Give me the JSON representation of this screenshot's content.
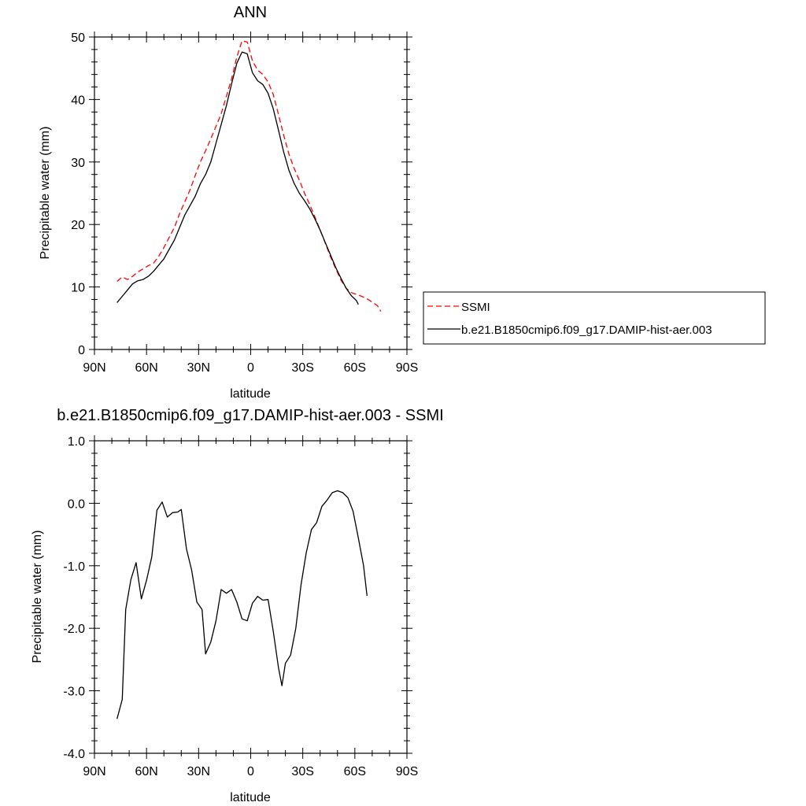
{
  "chart_data": [
    {
      "type": "line",
      "title": "ANN",
      "xlabel": "latitude",
      "ylabel": "Precipitable water (mm)",
      "xlim": [
        90,
        -90
      ],
      "ylim": [
        0,
        50
      ],
      "x_ticks": [
        {
          "value": 90,
          "label": "90N"
        },
        {
          "value": 60,
          "label": "60N"
        },
        {
          "value": 30,
          "label": "30N"
        },
        {
          "value": 0,
          "label": "0"
        },
        {
          "value": -30,
          "label": "30S"
        },
        {
          "value": -60,
          "label": "60S"
        },
        {
          "value": -90,
          "label": "90S"
        }
      ],
      "y_ticks": [
        {
          "value": 0,
          "label": "0"
        },
        {
          "value": 10,
          "label": "10"
        },
        {
          "value": 20,
          "label": "20"
        },
        {
          "value": 30,
          "label": "30"
        },
        {
          "value": 40,
          "label": "40"
        },
        {
          "value": 50,
          "label": "50"
        }
      ],
      "legend_position": "right",
      "series": [
        {
          "name": "SSMI",
          "color": "#ff0000",
          "dash": true,
          "points": [
            [
              77,
              10.9
            ],
            [
              74,
              11.6
            ],
            [
              71,
              11.2
            ],
            [
              68,
              11.7
            ],
            [
              65,
              12.4
            ],
            [
              62,
              12.9
            ],
            [
              59,
              13.4
            ],
            [
              56,
              13.8
            ],
            [
              53,
              14.9
            ],
            [
              50,
              16.3
            ],
            [
              47,
              17.9
            ],
            [
              44,
              19.5
            ],
            [
              41,
              21.7
            ],
            [
              38,
              23.6
            ],
            [
              35,
              25.5
            ],
            [
              32,
              27.8
            ],
            [
              29,
              30.0
            ],
            [
              26,
              31.8
            ],
            [
              23,
              33.7
            ],
            [
              20,
              35.7
            ],
            [
              17,
              37.7
            ],
            [
              14,
              40.5
            ],
            [
              11,
              43.3
            ],
            [
              8,
              46.8
            ],
            [
              5,
              49.4
            ],
            [
              2,
              49.2
            ],
            [
              -1,
              46.2
            ],
            [
              -4,
              44.7
            ],
            [
              -7,
              44.0
            ],
            [
              -10,
              42.8
            ],
            [
              -13,
              40.8
            ],
            [
              -16,
              37.6
            ],
            [
              -19,
              34.3
            ],
            [
              -22,
              31.3
            ],
            [
              -25,
              29.0
            ],
            [
              -28,
              27.1
            ],
            [
              -31,
              25.0
            ],
            [
              -34,
              23.2
            ],
            [
              -37,
              21.2
            ],
            [
              -40,
              19.1
            ],
            [
              -43,
              17.0
            ],
            [
              -46,
              14.8
            ],
            [
              -49,
              12.9
            ],
            [
              -52,
              11.1
            ],
            [
              -55,
              9.8
            ],
            [
              -58,
              9.1
            ],
            [
              -61,
              8.8
            ],
            [
              -64,
              8.5
            ],
            [
              -67,
              8.1
            ],
            [
              -70,
              7.6
            ],
            [
              -73,
              7.0
            ],
            [
              -75,
              6.1
            ]
          ]
        },
        {
          "name": "b.e21.B1850cmip6.f09_g17.DAMIP-hist-aer.003",
          "color": "#000000",
          "dash": false,
          "points": [
            [
              77,
              7.5
            ],
            [
              74,
              8.5
            ],
            [
              71,
              9.5
            ],
            [
              68,
              10.5
            ],
            [
              65,
              11.0
            ],
            [
              62,
              11.2
            ],
            [
              59,
              11.7
            ],
            [
              56,
              12.5
            ],
            [
              53,
              13.5
            ],
            [
              50,
              14.5
            ],
            [
              47,
              16.0
            ],
            [
              44,
              17.5
            ],
            [
              41,
              19.5
            ],
            [
              38,
              21.5
            ],
            [
              35,
              23.0
            ],
            [
              32,
              24.5
            ],
            [
              29,
              26.5
            ],
            [
              26,
              28.0
            ],
            [
              23,
              30.0
            ],
            [
              20,
              33.0
            ],
            [
              17,
              36.0
            ],
            [
              14,
              39.0
            ],
            [
              11,
              42.5
            ],
            [
              8,
              45.8
            ],
            [
              5,
              47.6
            ],
            [
              2,
              47.3
            ],
            [
              -1,
              44.3
            ],
            [
              -4,
              43.0
            ],
            [
              -7,
              42.4
            ],
            [
              -10,
              41.0
            ],
            [
              -13,
              38.5
            ],
            [
              -16,
              35.1
            ],
            [
              -19,
              31.6
            ],
            [
              -22,
              28.7
            ],
            [
              -25,
              26.6
            ],
            [
              -28,
              25.0
            ],
            [
              -31,
              23.8
            ],
            [
              -34,
              22.5
            ],
            [
              -37,
              20.9
            ],
            [
              -40,
              19.1
            ],
            [
              -43,
              17.1
            ],
            [
              -46,
              15.1
            ],
            [
              -49,
              13.1
            ],
            [
              -52,
              11.4
            ],
            [
              -55,
              9.8
            ],
            [
              -58,
              8.6
            ],
            [
              -61,
              7.8
            ],
            [
              -62,
              7.2
            ]
          ]
        }
      ]
    },
    {
      "type": "line",
      "title": "b.e21.B1850cmip6.f09_g17.DAMIP-hist-aer.003 - SSMI",
      "xlabel": "latitude",
      "ylabel": "Precipitable water (mm)",
      "xlim": [
        90,
        -90
      ],
      "ylim": [
        -4.0,
        1.0
      ],
      "x_ticks": [
        {
          "value": 90,
          "label": "90N"
        },
        {
          "value": 60,
          "label": "60N"
        },
        {
          "value": 30,
          "label": "30N"
        },
        {
          "value": 0,
          "label": "0"
        },
        {
          "value": -30,
          "label": "30S"
        },
        {
          "value": -60,
          "label": "60S"
        },
        {
          "value": -90,
          "label": "90S"
        }
      ],
      "y_ticks": [
        {
          "value": -4.0,
          "label": "-4.0"
        },
        {
          "value": -3.0,
          "label": "-3.0"
        },
        {
          "value": -2.0,
          "label": "-2.0"
        },
        {
          "value": -1.0,
          "label": "-1.0"
        },
        {
          "value": 0.0,
          "label": "0.0"
        },
        {
          "value": 1.0,
          "label": "1.0"
        }
      ],
      "series": [
        {
          "color": "#000000",
          "dash": false,
          "points": [
            [
              77,
              -3.45
            ],
            [
              74,
              -3.14
            ],
            [
              72,
              -1.7
            ],
            [
              69,
              -1.22
            ],
            [
              66,
              -0.95
            ],
            [
              63,
              -1.53
            ],
            [
              60,
              -1.23
            ],
            [
              57,
              -0.86
            ],
            [
              54,
              -0.11
            ],
            [
              51,
              0.02
            ],
            [
              48,
              -0.22
            ],
            [
              45,
              -0.15
            ],
            [
              42,
              -0.14
            ],
            [
              40,
              -0.1
            ],
            [
              37,
              -0.73
            ],
            [
              34,
              -1.07
            ],
            [
              31,
              -1.58
            ],
            [
              28,
              -1.7
            ],
            [
              26,
              -2.41
            ],
            [
              23,
              -2.22
            ],
            [
              20,
              -1.88
            ],
            [
              17,
              -1.38
            ],
            [
              14,
              -1.44
            ],
            [
              11,
              -1.38
            ],
            [
              8,
              -1.58
            ],
            [
              5,
              -1.85
            ],
            [
              2,
              -1.88
            ],
            [
              -1,
              -1.6
            ],
            [
              -4,
              -1.49
            ],
            [
              -7,
              -1.55
            ],
            [
              -10,
              -1.54
            ],
            [
              -13,
              -2.05
            ],
            [
              -16,
              -2.63
            ],
            [
              -18,
              -2.92
            ],
            [
              -20,
              -2.56
            ],
            [
              -23,
              -2.43
            ],
            [
              -26,
              -2.0
            ],
            [
              -29,
              -1.3
            ],
            [
              -32,
              -0.79
            ],
            [
              -35,
              -0.42
            ],
            [
              -38,
              -0.31
            ],
            [
              -41,
              -0.05
            ],
            [
              -44,
              0.05
            ],
            [
              -47,
              0.17
            ],
            [
              -50,
              0.2
            ],
            [
              -53,
              0.17
            ],
            [
              -56,
              0.09
            ],
            [
              -59,
              -0.13
            ],
            [
              -62,
              -0.55
            ],
            [
              -65,
              -1.0
            ],
            [
              -67,
              -1.48
            ]
          ]
        }
      ]
    }
  ]
}
